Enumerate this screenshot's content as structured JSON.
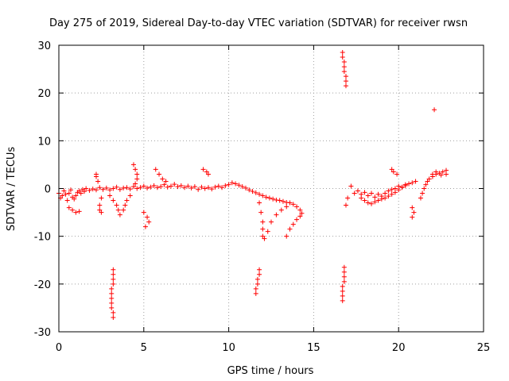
{
  "chart_data": {
    "type": "scatter",
    "title": "Day 275 of 2019, Sidereal Day-to-day VTEC variation (SDTVAR) for receiver rwsn",
    "xlabel": "GPS time / hours",
    "ylabel": "SDTVAR / TECUs",
    "xlim": [
      0,
      25
    ],
    "ylim": [
      -30,
      30
    ],
    "xticks": [
      0,
      5,
      10,
      15,
      20,
      25
    ],
    "xtick_labels": [
      "0",
      "5",
      "10",
      "15",
      "20",
      "25"
    ],
    "yticks": [
      -30,
      -20,
      -10,
      0,
      10,
      20,
      30
    ],
    "ytick_labels": [
      "-30",
      "-20",
      "-10",
      "0",
      "10",
      "20",
      "30"
    ],
    "grid": true,
    "marker": "+",
    "color": "#ff0000",
    "series": [
      {
        "name": "SDTVAR",
        "points": [
          [
            0.0,
            -1.0
          ],
          [
            0.1,
            -2.0
          ],
          [
            0.2,
            -1.5
          ],
          [
            0.3,
            -0.5
          ],
          [
            0.4,
            -1.2
          ],
          [
            0.5,
            -2.5
          ],
          [
            0.6,
            -1.0
          ],
          [
            0.7,
            -0.3
          ],
          [
            0.8,
            -1.8
          ],
          [
            0.9,
            -2.2
          ],
          [
            1.0,
            -1.5
          ],
          [
            1.1,
            -0.8
          ],
          [
            1.2,
            -0.5
          ],
          [
            1.3,
            -1.0
          ],
          [
            1.4,
            -0.2
          ],
          [
            1.5,
            -0.6
          ],
          [
            1.6,
            0.0
          ],
          [
            1.8,
            -0.4
          ],
          [
            2.0,
            -0.1
          ],
          [
            2.2,
            -0.3
          ],
          [
            2.4,
            0.2
          ],
          [
            2.6,
            -0.2
          ],
          [
            2.8,
            0.1
          ],
          [
            3.0,
            -0.3
          ],
          [
            3.2,
            0.0
          ],
          [
            3.4,
            0.3
          ],
          [
            3.6,
            -0.2
          ],
          [
            3.8,
            0.1
          ],
          [
            4.0,
            0.2
          ],
          [
            4.2,
            -0.1
          ],
          [
            4.4,
            0.4
          ],
          [
            4.6,
            0.0
          ],
          [
            4.8,
            0.2
          ],
          [
            5.0,
            0.5
          ],
          [
            5.2,
            0.1
          ],
          [
            5.4,
            0.3
          ],
          [
            5.6,
            0.6
          ],
          [
            5.8,
            0.2
          ],
          [
            6.0,
            0.4
          ],
          [
            6.2,
            0.8
          ],
          [
            6.4,
            0.3
          ],
          [
            6.6,
            0.5
          ],
          [
            6.8,
            0.9
          ],
          [
            7.0,
            0.4
          ],
          [
            7.2,
            0.6
          ],
          [
            7.4,
            0.2
          ],
          [
            7.6,
            0.5
          ],
          [
            7.8,
            0.1
          ],
          [
            8.0,
            0.4
          ],
          [
            8.2,
            -0.2
          ],
          [
            8.4,
            0.3
          ],
          [
            8.6,
            0.0
          ],
          [
            8.8,
            0.2
          ],
          [
            9.0,
            -0.1
          ],
          [
            9.2,
            0.3
          ],
          [
            9.4,
            0.5
          ],
          [
            9.6,
            0.2
          ],
          [
            9.8,
            0.6
          ],
          [
            10.0,
            0.8
          ],
          [
            10.2,
            1.2
          ],
          [
            10.4,
            1.0
          ],
          [
            10.6,
            0.7
          ],
          [
            10.8,
            0.4
          ],
          [
            11.0,
            0.1
          ],
          [
            11.2,
            -0.3
          ],
          [
            11.4,
            -0.6
          ],
          [
            11.6,
            -0.9
          ],
          [
            11.8,
            -1.2
          ],
          [
            12.0,
            -1.5
          ],
          [
            12.2,
            -1.8
          ],
          [
            12.4,
            -2.0
          ],
          [
            12.6,
            -2.2
          ],
          [
            12.8,
            -2.4
          ],
          [
            13.0,
            -2.5
          ],
          [
            13.2,
            -2.7
          ],
          [
            13.4,
            -2.9
          ],
          [
            13.6,
            -3.0
          ],
          [
            13.8,
            -3.3
          ],
          [
            14.0,
            -3.8
          ],
          [
            14.2,
            -4.5
          ],
          [
            14.3,
            -5.2
          ],
          [
            0.6,
            -4.0
          ],
          [
            0.8,
            -4.5
          ],
          [
            1.0,
            -5.0
          ],
          [
            1.2,
            -4.8
          ],
          [
            2.2,
            2.5
          ],
          [
            2.2,
            3.0
          ],
          [
            2.3,
            1.5
          ],
          [
            2.5,
            -2.0
          ],
          [
            2.4,
            -3.5
          ],
          [
            2.4,
            -4.5
          ],
          [
            2.5,
            -5.0
          ],
          [
            3.0,
            -1.5
          ],
          [
            3.2,
            -2.5
          ],
          [
            3.4,
            -3.5
          ],
          [
            3.5,
            -4.5
          ],
          [
            3.6,
            -5.5
          ],
          [
            4.2,
            -1.5
          ],
          [
            4.0,
            -2.5
          ],
          [
            3.9,
            -3.5
          ],
          [
            3.8,
            -4.5
          ],
          [
            4.4,
            5.0
          ],
          [
            4.5,
            4.0
          ],
          [
            4.6,
            3.0
          ],
          [
            4.6,
            2.0
          ],
          [
            4.5,
            1.0
          ],
          [
            5.0,
            -5.0
          ],
          [
            5.2,
            -6.0
          ],
          [
            5.3,
            -7.0
          ],
          [
            5.1,
            -8.0
          ],
          [
            5.7,
            4.0
          ],
          [
            5.9,
            3.0
          ],
          [
            6.1,
            2.0
          ],
          [
            6.3,
            1.5
          ],
          [
            8.5,
            4.0
          ],
          [
            8.7,
            3.5
          ],
          [
            8.8,
            3.0
          ],
          [
            11.8,
            -3.0
          ],
          [
            11.9,
            -5.0
          ],
          [
            12.0,
            -7.0
          ],
          [
            12.0,
            -8.5
          ],
          [
            12.0,
            -10.0
          ],
          [
            12.1,
            -10.5
          ],
          [
            12.3,
            -9.0
          ],
          [
            12.5,
            -7.0
          ],
          [
            12.8,
            -5.5
          ],
          [
            13.1,
            -4.5
          ],
          [
            13.4,
            -3.8
          ],
          [
            13.4,
            -10.0
          ],
          [
            13.6,
            -8.5
          ],
          [
            13.8,
            -7.5
          ],
          [
            14.0,
            -6.5
          ],
          [
            14.2,
            -5.8
          ],
          [
            3.2,
            -17.0
          ],
          [
            3.2,
            -18.0
          ],
          [
            3.2,
            -19.0
          ],
          [
            3.2,
            -20.0
          ],
          [
            3.1,
            -21.0
          ],
          [
            3.1,
            -22.0
          ],
          [
            3.1,
            -23.0
          ],
          [
            3.1,
            -24.0
          ],
          [
            3.1,
            -25.0
          ],
          [
            3.2,
            -26.0
          ],
          [
            3.2,
            -27.0
          ],
          [
            11.8,
            -17.0
          ],
          [
            11.8,
            -18.0
          ],
          [
            11.7,
            -19.0
          ],
          [
            11.7,
            -20.0
          ],
          [
            11.6,
            -21.0
          ],
          [
            11.6,
            -22.0
          ],
          [
            16.7,
            28.5
          ],
          [
            16.7,
            27.5
          ],
          [
            16.8,
            26.5
          ],
          [
            16.8,
            25.5
          ],
          [
            16.8,
            24.5
          ],
          [
            16.9,
            23.5
          ],
          [
            16.9,
            22.5
          ],
          [
            16.9,
            21.5
          ],
          [
            16.8,
            -16.5
          ],
          [
            16.8,
            -17.5
          ],
          [
            16.8,
            -18.5
          ],
          [
            16.8,
            -19.5
          ],
          [
            16.7,
            -20.5
          ],
          [
            16.7,
            -21.5
          ],
          [
            16.7,
            -22.5
          ],
          [
            16.7,
            -23.5
          ],
          [
            16.9,
            -3.5
          ],
          [
            17.0,
            -2.0
          ],
          [
            17.2,
            0.5
          ],
          [
            17.4,
            -1.0
          ],
          [
            17.6,
            -0.5
          ],
          [
            17.8,
            -1.2
          ],
          [
            18.0,
            -0.8
          ],
          [
            18.2,
            -1.5
          ],
          [
            18.4,
            -1.0
          ],
          [
            18.6,
            -1.8
          ],
          [
            18.8,
            -1.2
          ],
          [
            19.0,
            -1.6
          ],
          [
            19.2,
            -1.0
          ],
          [
            19.4,
            -0.5
          ],
          [
            19.6,
            -0.2
          ],
          [
            19.8,
            0.0
          ],
          [
            20.0,
            0.5
          ],
          [
            20.2,
            0.3
          ],
          [
            20.4,
            0.6
          ],
          [
            20.6,
            1.0
          ],
          [
            20.8,
            1.2
          ],
          [
            21.0,
            1.5
          ],
          [
            17.8,
            -2.0
          ],
          [
            18.0,
            -2.5
          ],
          [
            18.2,
            -3.0
          ],
          [
            18.4,
            -3.2
          ],
          [
            18.6,
            -2.8
          ],
          [
            18.8,
            -2.5
          ],
          [
            19.0,
            -2.2
          ],
          [
            19.2,
            -2.0
          ],
          [
            19.4,
            -1.6
          ],
          [
            19.6,
            -1.2
          ],
          [
            19.8,
            -0.8
          ],
          [
            20.0,
            -0.3
          ],
          [
            20.2,
            0.2
          ],
          [
            20.4,
            0.8
          ],
          [
            19.6,
            4.0
          ],
          [
            19.7,
            3.5
          ],
          [
            19.9,
            3.0
          ],
          [
            20.8,
            -4.0
          ],
          [
            20.9,
            -5.0
          ],
          [
            20.8,
            -6.0
          ],
          [
            21.3,
            -2.0
          ],
          [
            21.4,
            -1.0
          ],
          [
            21.5,
            0.0
          ],
          [
            21.6,
            0.8
          ],
          [
            21.7,
            1.5
          ],
          [
            21.8,
            2.0
          ],
          [
            22.0,
            2.5
          ],
          [
            22.2,
            3.0
          ],
          [
            22.4,
            3.2
          ],
          [
            22.6,
            3.5
          ],
          [
            22.8,
            3.8
          ],
          [
            22.0,
            3.0
          ],
          [
            22.2,
            3.5
          ],
          [
            22.5,
            2.8
          ],
          [
            22.8,
            3.0
          ],
          [
            22.1,
            16.5
          ]
        ]
      }
    ]
  }
}
